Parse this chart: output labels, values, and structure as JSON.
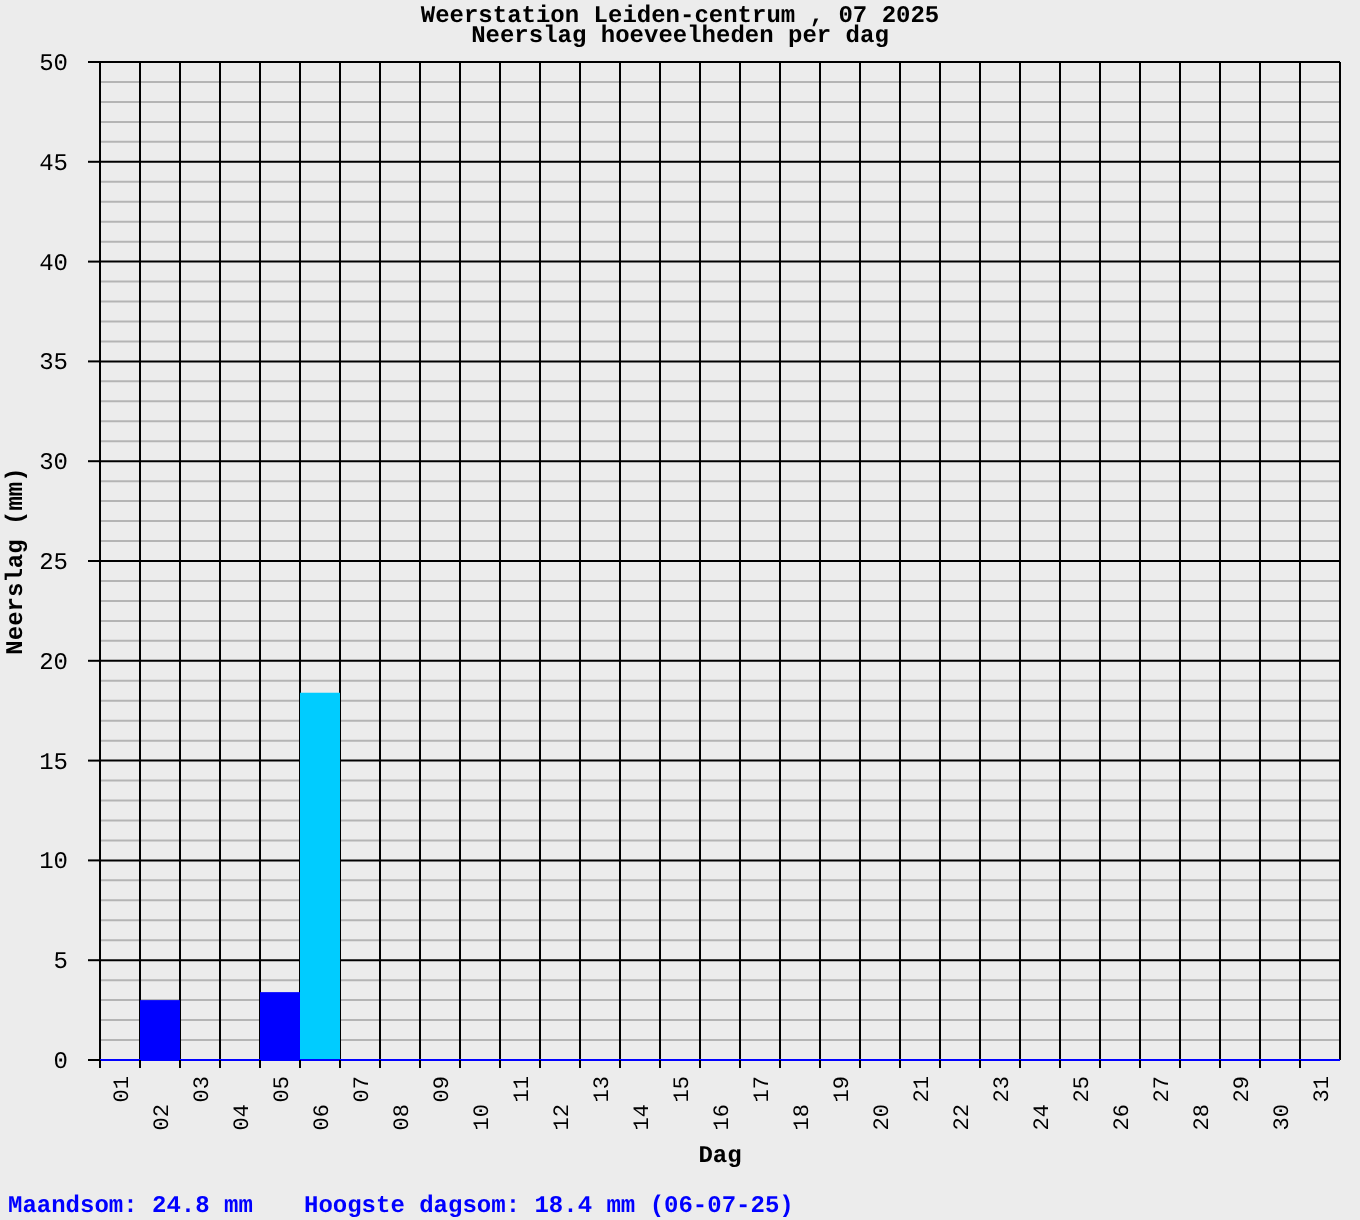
{
  "chart_data": {
    "type": "bar",
    "title": "Weerstation Leiden-centrum , 07 2025",
    "subtitle": "Neerslag hoeveelheden per dag",
    "xlabel": "Dag",
    "ylabel": "Neerslag (mm)",
    "categories": [
      "01",
      "02",
      "03",
      "04",
      "05",
      "06",
      "07",
      "08",
      "09",
      "10",
      "11",
      "12",
      "13",
      "14",
      "15",
      "16",
      "17",
      "18",
      "19",
      "20",
      "21",
      "22",
      "23",
      "24",
      "25",
      "26",
      "27",
      "28",
      "29",
      "30",
      "31"
    ],
    "values": [
      0,
      3.0,
      0,
      0,
      3.4,
      18.4,
      0,
      0,
      0,
      0,
      0,
      0,
      0,
      0,
      0,
      0,
      0,
      0,
      0,
      0,
      0,
      0,
      0,
      0,
      0,
      0,
      0,
      0,
      0,
      0,
      0
    ],
    "colors": [
      "#0000ff",
      "#0000ff",
      "#0000ff",
      "#0000ff",
      "#0000ff",
      "#00ccff",
      "#0000ff",
      "#0000ff",
      "#0000ff",
      "#0000ff",
      "#0000ff",
      "#0000ff",
      "#0000ff",
      "#0000ff",
      "#0000ff",
      "#0000ff",
      "#0000ff",
      "#0000ff",
      "#0000ff",
      "#0000ff",
      "#0000ff",
      "#0000ff",
      "#0000ff",
      "#0000ff",
      "#0000ff",
      "#0000ff",
      "#0000ff",
      "#0000ff",
      "#0000ff",
      "#0000ff",
      "#0000ff"
    ],
    "ylim": [
      0,
      50
    ],
    "yticks": [
      0,
      5,
      10,
      15,
      20,
      25,
      30,
      35,
      40,
      45,
      50
    ],
    "grid": true,
    "annotations": [
      "Maandsom: 24.8 mm",
      "Hoogste dagsom: 18.4 mm (06-07-25)"
    ]
  }
}
